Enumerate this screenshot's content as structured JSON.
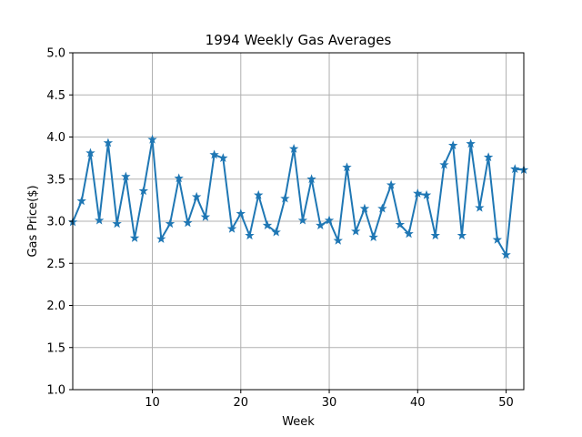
{
  "chart_data": {
    "type": "line",
    "title": "1994 Weekly Gas Averages",
    "xlabel": "Week",
    "ylabel": "Gas Price($)",
    "xlim": [
      1,
      52
    ],
    "ylim": [
      1.0,
      5.0
    ],
    "xticks": [
      10,
      20,
      30,
      40,
      50
    ],
    "yticks": [
      1.0,
      1.5,
      2.0,
      2.5,
      3.0,
      3.5,
      4.0,
      4.5,
      5.0
    ],
    "grid": true,
    "marker": "star",
    "line_color": "#1f77b4",
    "x": [
      1,
      2,
      3,
      4,
      5,
      6,
      7,
      8,
      9,
      10,
      11,
      12,
      13,
      14,
      15,
      16,
      17,
      18,
      19,
      20,
      21,
      22,
      23,
      24,
      25,
      26,
      27,
      28,
      29,
      30,
      31,
      32,
      33,
      34,
      35,
      36,
      37,
      38,
      39,
      40,
      41,
      42,
      43,
      44,
      45,
      46,
      47,
      48,
      49,
      50,
      51,
      52
    ],
    "values": [
      2.99,
      3.24,
      3.81,
      3.01,
      3.93,
      2.97,
      3.53,
      2.8,
      3.36,
      3.97,
      2.79,
      2.97,
      3.51,
      2.98,
      3.29,
      3.05,
      3.79,
      3.75,
      2.91,
      3.09,
      2.83,
      3.31,
      2.95,
      2.87,
      3.27,
      3.86,
      3.01,
      3.5,
      2.95,
      3.01,
      2.77,
      3.64,
      2.88,
      3.15,
      2.81,
      3.15,
      3.43,
      2.96,
      2.85,
      3.33,
      3.31,
      2.83,
      3.67,
      3.9,
      2.83,
      3.92,
      3.16,
      3.76,
      2.78,
      2.6,
      3.62,
      3.61
    ]
  }
}
